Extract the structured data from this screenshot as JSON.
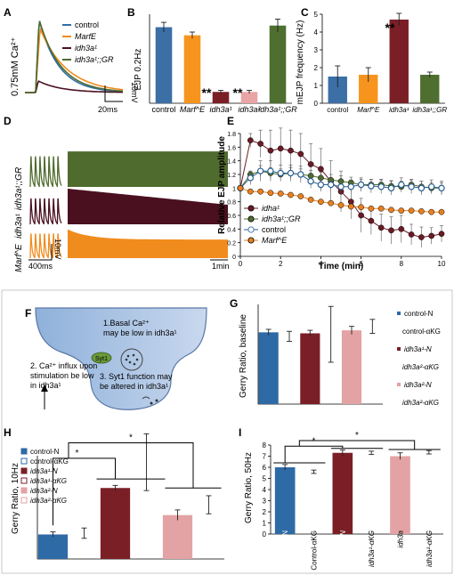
{
  "panels": {
    "A": {
      "label": "A",
      "ylabel": "0.75mM Ca²⁺",
      "legend": [
        "control",
        "MarfE",
        "idh3a¹",
        "idh3a¹;;GR"
      ],
      "colors": [
        "#2f6fa8",
        "#f08c1e",
        "#4a1020",
        "#4f6b2e"
      ],
      "scale_v": "10mV",
      "scale_t": "20ms"
    },
    "B": {
      "label": "B",
      "ylabel": "EJP 0.2Hz",
      "stars": "**",
      "chart_data": {
        "type": "bar",
        "categories": [
          "control",
          "Marf^E",
          "idh3a¹",
          "idh3a²",
          "idh3a¹;;GR"
        ],
        "values": [
          47,
          42,
          7,
          7,
          48
        ],
        "errors": [
          3,
          2,
          1,
          1,
          4
        ],
        "colors": [
          "#3b6fa6",
          "#f7941d",
          "#7b1f27",
          "#e9a5a6",
          "#4e6f2f"
        ],
        "ylim": [
          0,
          55
        ]
      }
    },
    "C": {
      "label": "C",
      "ylabel": "mEJP frequency (Hz)",
      "stars": "**",
      "chart_data": {
        "type": "bar",
        "categories": [
          "control",
          "Marf^E",
          "idh3a¹",
          "idh3a¹;;GR"
        ],
        "values": [
          1.5,
          1.6,
          4.7,
          1.6
        ],
        "errors": [
          0.6,
          0.4,
          0.35,
          0.15
        ],
        "colors": [
          "#3b6fa6",
          "#f7941d",
          "#7b1f27",
          "#4e6f2f"
        ],
        "ylim": [
          0,
          5
        ],
        "yticks": [
          0,
          1,
          2,
          3,
          4,
          5
        ]
      }
    },
    "D": {
      "label": "D",
      "rows": [
        "idh3a¹;;GR",
        "idh3a¹",
        "Marf^E"
      ],
      "colors": [
        "#4f6b2e",
        "#4a1020",
        "#f08c1e"
      ],
      "scale_v": "10mV",
      "scale_t1": "400ms",
      "scale_t2": "1min"
    },
    "E": {
      "label": "E",
      "chart_data": {
        "type": "line",
        "xlabel": "Time (min)",
        "ylabel": "Relative EJP amplitude",
        "xlim": [
          0,
          10
        ],
        "ylim": [
          0,
          1.8
        ],
        "xticks": [
          0,
          2,
          4,
          6,
          8,
          10
        ],
        "yticks": [
          0,
          0.2,
          0.4,
          0.6,
          0.8,
          1,
          1.2,
          1.4,
          1.6,
          1.8
        ],
        "x": [
          0,
          0.5,
          1,
          1.5,
          2,
          2.5,
          3,
          3.5,
          4,
          4.5,
          5,
          5.5,
          6,
          6.5,
          7,
          7.5,
          8,
          8.5,
          9,
          9.5,
          10
        ],
        "series": [
          {
            "name": "idha¹",
            "color": "#6b1a25",
            "values": [
              1.0,
              1.7,
              1.65,
              1.55,
              1.58,
              1.55,
              1.5,
              1.35,
              1.28,
              1.1,
              0.95,
              0.8,
              0.6,
              0.52,
              0.42,
              0.38,
              0.4,
              0.32,
              0.28,
              0.3,
              0.33
            ],
            "err": [
              0,
              0.1,
              0.2,
              0.3,
              0.3,
              0.3,
              0.3,
              0.3,
              0.3,
              0.3,
              0.3,
              0.25,
              0.25,
              0.2,
              0.2,
              0.2,
              0.2,
              0.15,
              0.15,
              0.12,
              0.12
            ]
          },
          {
            "name": "idh3a¹;;GR",
            "color": "#4e6f2f",
            "values": [
              1.0,
              1.2,
              1.25,
              1.22,
              1.2,
              1.22,
              1.2,
              1.18,
              1.15,
              1.12,
              1.1,
              1.08,
              1.05,
              1.05,
              1.05,
              1.03,
              1.02,
              1.05,
              1.02,
              1.0,
              1.0
            ],
            "err": [
              0,
              0.05,
              0.08,
              0.08,
              0.08,
              0.08,
              0.08,
              0.08,
              0.08,
              0.08,
              0.08,
              0.08,
              0.08,
              0.08,
              0.08,
              0.08,
              0.08,
              0.08,
              0.08,
              0.08,
              0.08
            ]
          },
          {
            "name": "control",
            "color": "#2a5f92",
            "values": [
              1.0,
              1.15,
              1.25,
              1.25,
              1.22,
              1.22,
              1.2,
              1.1,
              1.05,
              1.05,
              1.02,
              1.02,
              1.05,
              1.03,
              1.02,
              1.0,
              1.05,
              1.02,
              1.0,
              1.02,
              1.0
            ],
            "err": [
              0,
              0.1,
              0.15,
              0.15,
              0.12,
              0.12,
              0.12,
              0.1,
              0.1,
              0.1,
              0.1,
              0.1,
              0.1,
              0.1,
              0.1,
              0.1,
              0.1,
              0.1,
              0.1,
              0.1,
              0.1
            ]
          },
          {
            "name": "Marf^E",
            "color": "#e8801f",
            "values": [
              1.0,
              0.95,
              0.95,
              0.93,
              0.92,
              0.9,
              0.88,
              0.83,
              0.8,
              0.78,
              0.75,
              0.73,
              0.72,
              0.7,
              0.7,
              0.68,
              0.67,
              0.67,
              0.66,
              0.65,
              0.65
            ],
            "err": [
              0,
              0.03,
              0.03,
              0.03,
              0.03,
              0.03,
              0.03,
              0.03,
              0.03,
              0.03,
              0.03,
              0.03,
              0.03,
              0.03,
              0.03,
              0.03,
              0.03,
              0.03,
              0.03,
              0.03,
              0.03
            ]
          }
        ]
      }
    },
    "F": {
      "label": "F",
      "text1": [
        "1.Basal Ca²⁺",
        "may be low in idh3a¹"
      ],
      "text2": [
        "2. Ca²⁺ influx upon",
        "stimulation be low",
        "in idh3a¹"
      ],
      "text3": [
        "3. Syt1 function may",
        "be altered in idh3a¹"
      ],
      "syt": "Syt1"
    },
    "G": {
      "label": "G",
      "chart_data": {
        "type": "bar",
        "ylabel": "Gerry Ratio, baseline",
        "categories": [
          "control",
          "control-αKG",
          "idh3a¹",
          "idh3a¹-αKG",
          "idh3a²",
          "idh3a²-αKG"
        ],
        "values": [
          0.72,
          null,
          0.71,
          null,
          0.74,
          null
        ],
        "errors": [
          0.03,
          0.05,
          0.03,
          0.28,
          0.04,
          0.07
        ],
        "marker_values": [
          null,
          0.68,
          null,
          0.7,
          null,
          0.78
        ],
        "colors": [
          "#2e6aa6",
          "#ffffff",
          "#7b1f27",
          "#ffffff",
          "#e3a2a4",
          "#ffffff"
        ],
        "ylim": [
          0,
          1.0
        ],
        "legend": [
          "control-N",
          "control-αKG",
          "idh3a¹-N",
          "idh3a²-αKG",
          "idh3a²-N",
          "idh3a²-αKG"
        ]
      }
    },
    "H": {
      "label": "H",
      "chart_data": {
        "type": "bar",
        "ylabel": "Gerry Ratio, 10Hz",
        "categories": [
          "control-N",
          "control-αKG",
          "idh3a¹-N",
          "idh3a¹-αKG",
          "idh3a²-N",
          "idh3a²-αKG"
        ],
        "values": [
          0.19,
          null,
          0.55,
          null,
          0.34,
          null
        ],
        "errors": [
          0.02,
          0.04,
          0.02,
          0.22,
          0.04,
          0.07
        ],
        "marker_values": [
          null,
          0.2,
          null,
          0.75,
          null,
          0.42
        ],
        "colors": [
          "#2e6aa6",
          "#ffffff",
          "#7b1f27",
          "#ffffff",
          "#e3a2a4",
          "#ffffff"
        ],
        "ylim": [
          0,
          0.8
        ],
        "stars": [
          "*",
          "*"
        ],
        "legend": [
          "control-N",
          "control-αKG",
          "idh3a¹-N",
          "idh3a¹-αKG",
          "idh3a²-N",
          "idh3a²-αKG"
        ]
      }
    },
    "I": {
      "label": "I",
      "chart_data": {
        "type": "bar",
        "ylabel": "Gerry Ratio, 50Hz",
        "categories": [
          "Control-N",
          "Control-αKG",
          "idh3a¹-N",
          "idh3a¹-αKG",
          "idh3a",
          "idh3a²-αKG"
        ],
        "values": [
          6.0,
          null,
          7.3,
          null,
          7.0,
          null
        ],
        "errors": [
          0.25,
          0.15,
          0.25,
          0.15,
          0.3,
          0.15
        ],
        "marker_values": [
          null,
          5.6,
          null,
          7.3,
          null,
          7.35
        ],
        "colors": [
          "#2e6aa6",
          "#ffffff",
          "#7b1f27",
          "#ffffff",
          "#e3a2a4",
          "#ffffff"
        ],
        "ylim": [
          0,
          8
        ],
        "yticks": [
          0,
          1,
          2,
          3,
          4,
          5,
          6,
          7,
          8
        ],
        "stars": [
          "*",
          "*"
        ]
      }
    }
  }
}
